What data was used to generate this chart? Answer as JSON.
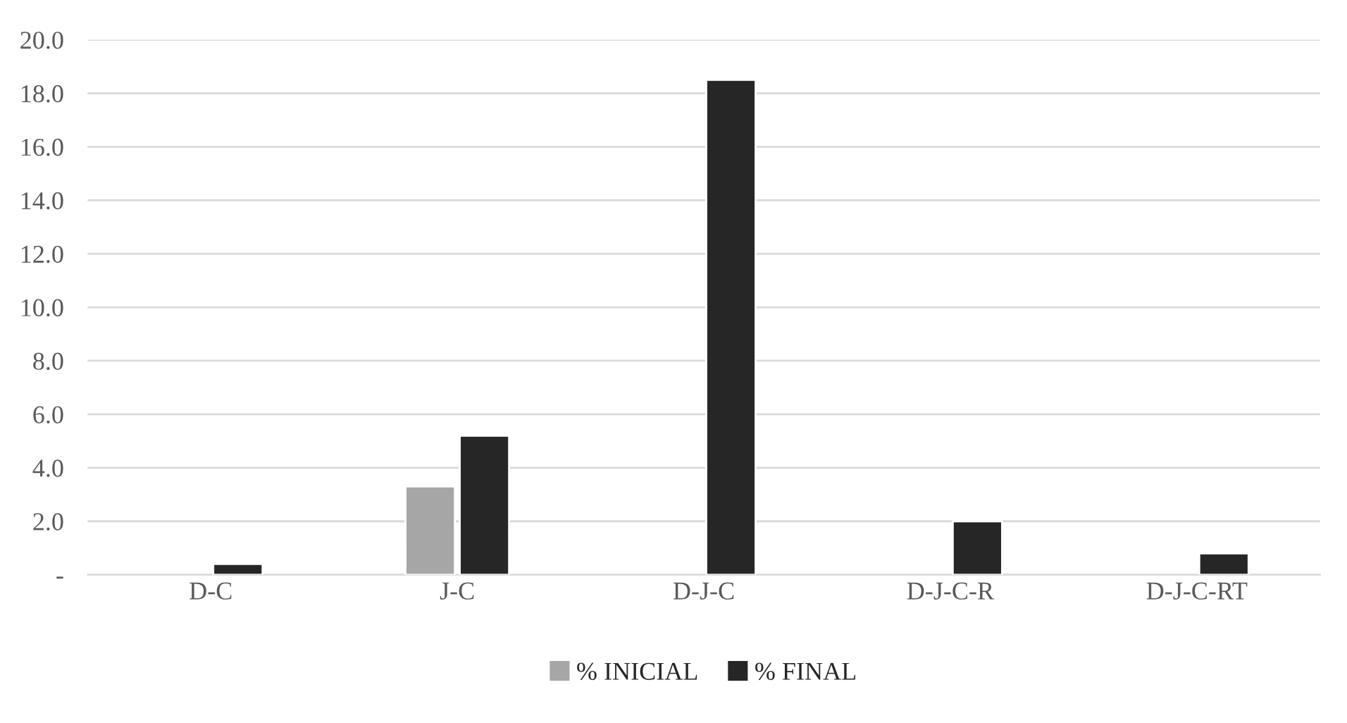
{
  "chart_data": {
    "type": "bar",
    "categories": [
      "D-C",
      "J-C",
      "D-J-C",
      "D-J-C-R",
      "D-J-C-RT"
    ],
    "series": [
      {
        "name": "% INICIAL",
        "color": "#a6a6a6",
        "values": [
          null,
          3.3,
          null,
          null,
          null
        ]
      },
      {
        "name": "% FINAL",
        "color": "#262626",
        "values": [
          0.4,
          5.2,
          18.5,
          2.0,
          0.8
        ]
      }
    ],
    "ylim": [
      0,
      20
    ],
    "yticks": [
      {
        "value": 0,
        "label": "-"
      },
      {
        "value": 2,
        "label": "2.0"
      },
      {
        "value": 4,
        "label": "4.0"
      },
      {
        "value": 6,
        "label": "6.0"
      },
      {
        "value": 8,
        "label": "8.0"
      },
      {
        "value": 10,
        "label": "10.0"
      },
      {
        "value": 12,
        "label": "12.0"
      },
      {
        "value": 14,
        "label": "14.0"
      },
      {
        "value": 16,
        "label": "16.0"
      },
      {
        "value": 18,
        "label": "18.0"
      },
      {
        "value": 20,
        "label": "20.0"
      }
    ],
    "grid": "y",
    "legend": "bottom"
  }
}
